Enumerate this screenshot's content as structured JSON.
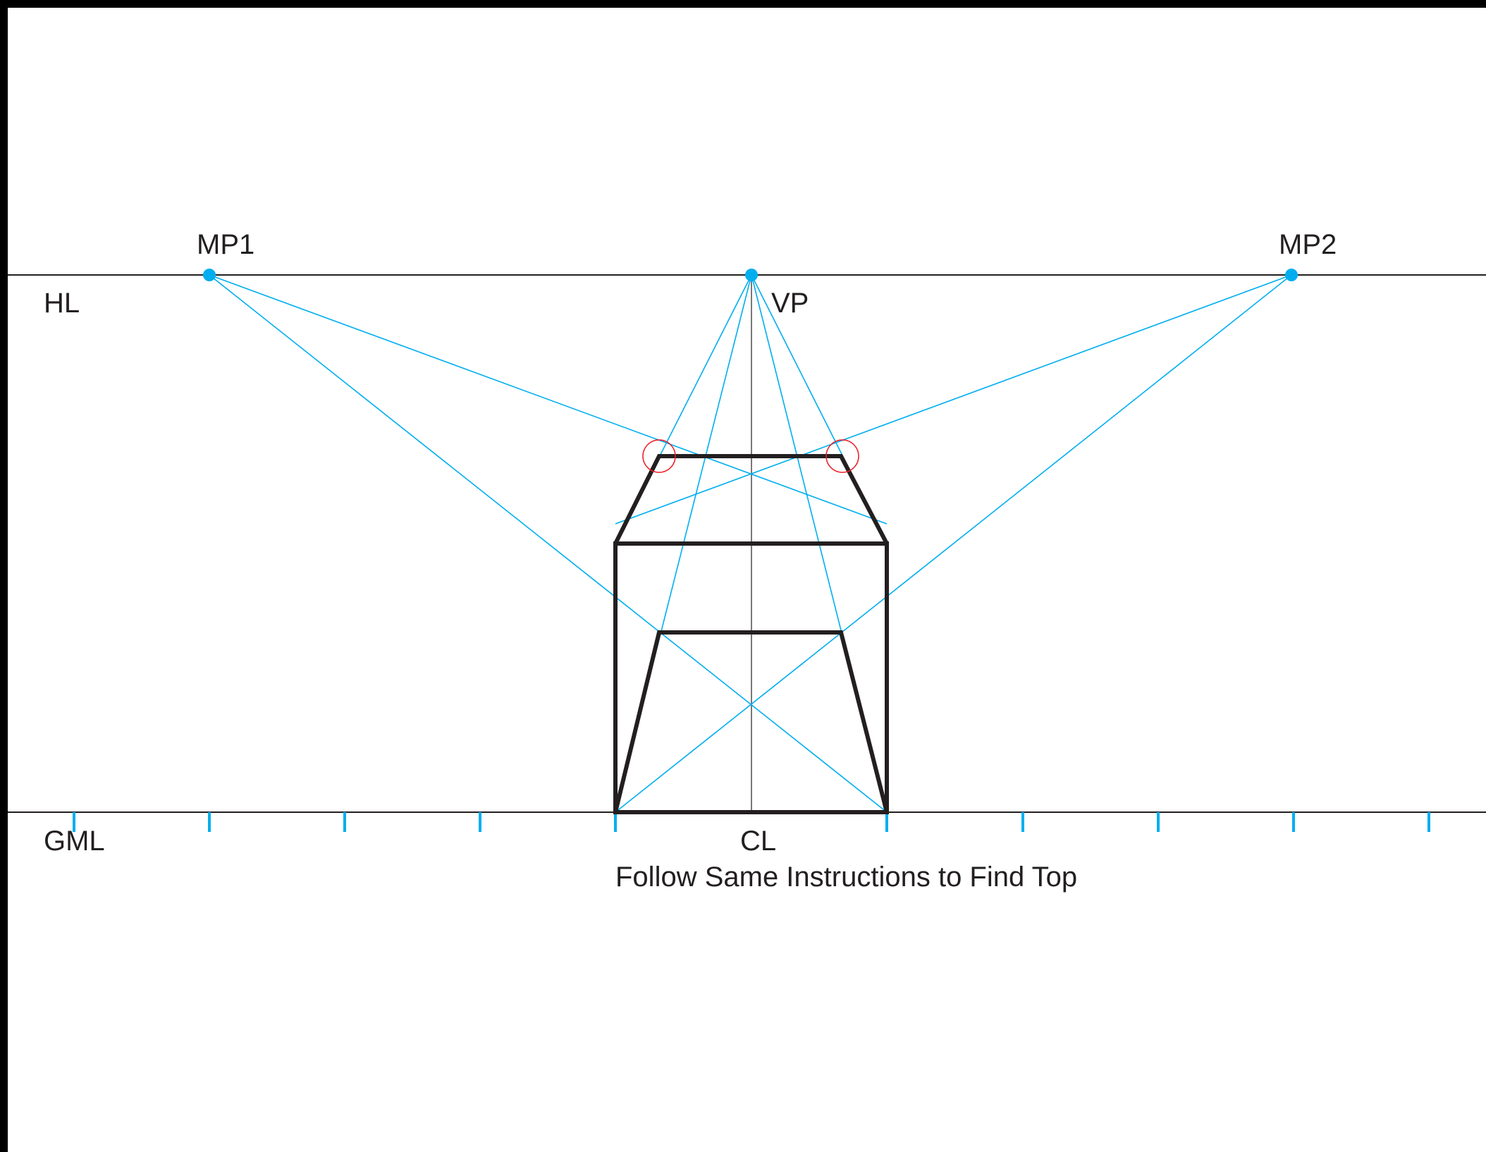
{
  "labels": {
    "mp1": "MP1",
    "mp2": "MP2",
    "hl": "HL",
    "vp": "VP",
    "gml": "GML",
    "cl": "CL",
    "caption": "Follow Same Instructions to Find Top"
  },
  "colors": {
    "background": "#ffffff",
    "frame": "#000000",
    "ink": "#231f20",
    "construction": "#00aeef",
    "highlight": "#ed1c24"
  }
}
